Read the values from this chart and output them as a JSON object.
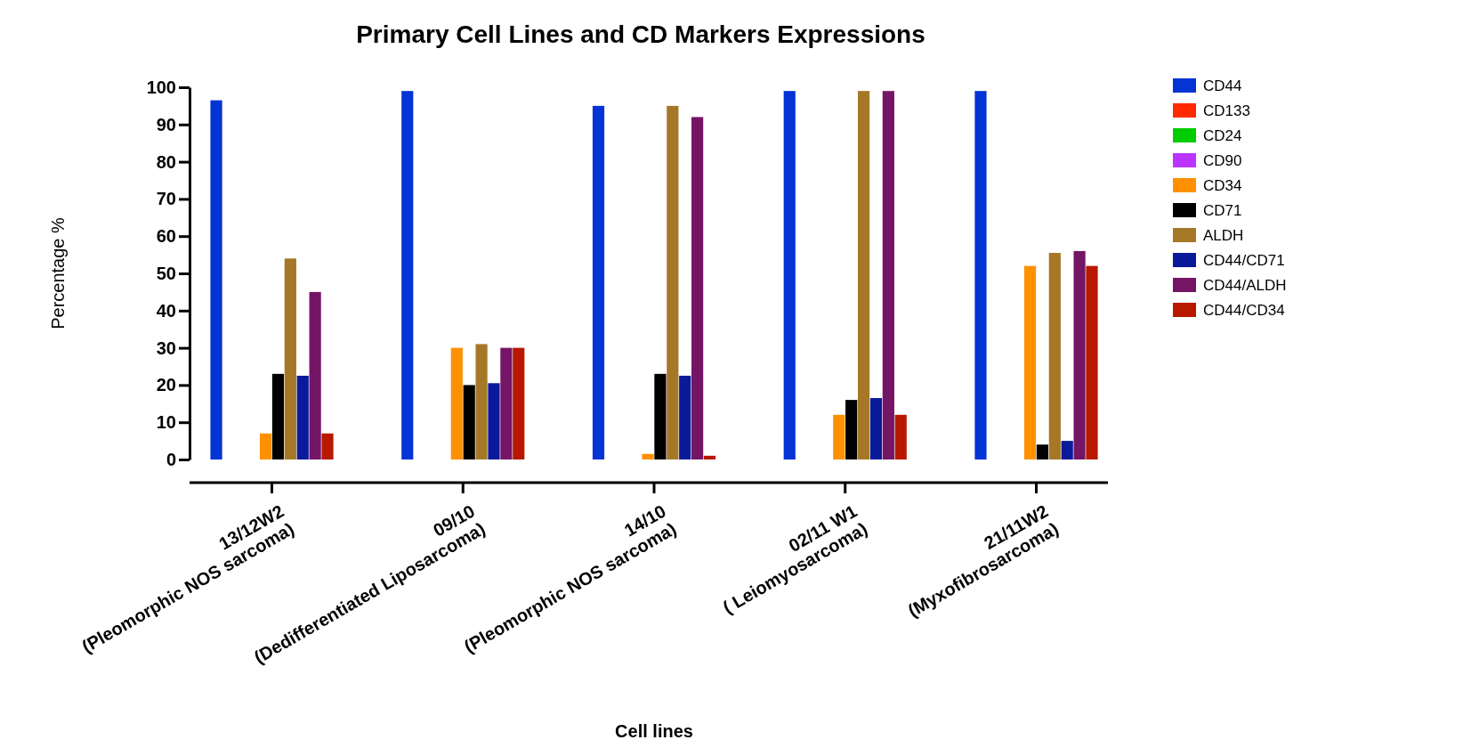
{
  "chart_data": {
    "type": "bar",
    "title": "Primary Cell Lines and CD Markers Expressions",
    "xlabel": "Cell lines",
    "ylabel": "Percentage %",
    "categories": [
      "13/12W2\n(Pleomorphic NOS sarcoma)",
      "09/10\n(Dedifferentiated Liposarcoma)",
      "14/10\n(Pleomorphic NOS sarcoma)",
      "02/11 W1\n( Leiomyosarcoma)",
      "21/11W2\n(Myxofibrosarcoma)"
    ],
    "series": [
      {
        "name": "CD44",
        "color": "#0433d6",
        "values": [
          96.5,
          99,
          95,
          99,
          99
        ]
      },
      {
        "name": "CD133",
        "color": "#ff2a00",
        "values": [
          0,
          0,
          0,
          0,
          0
        ]
      },
      {
        "name": "CD24",
        "color": "#00cc00",
        "values": [
          0,
          0,
          0,
          0,
          0
        ]
      },
      {
        "name": "CD90",
        "color": "#bb33ff",
        "values": [
          0,
          0,
          0,
          0,
          0
        ]
      },
      {
        "name": "CD34",
        "color": "#ff9000",
        "values": [
          7,
          30,
          1.5,
          12,
          52
        ]
      },
      {
        "name": "CD71",
        "color": "#000000",
        "values": [
          23,
          20,
          23,
          16,
          4
        ]
      },
      {
        "name": "ALDH",
        "color": "#a57828",
        "values": [
          54,
          31,
          95,
          99,
          55.5
        ]
      },
      {
        "name": "CD44/CD71",
        "color": "#0a1a9a",
        "values": [
          22.5,
          20.5,
          22.5,
          16.5,
          5
        ]
      },
      {
        "name": "CD44/ALDH",
        "color": "#751565",
        "values": [
          45,
          30,
          92,
          99,
          56
        ]
      },
      {
        "name": "CD44/CD34",
        "color": "#b81800",
        "values": [
          7,
          30,
          1,
          12,
          52
        ]
      }
    ],
    "ylim": [
      0,
      100
    ],
    "yticks": [
      0,
      10,
      20,
      30,
      40,
      50,
      60,
      70,
      80,
      90,
      100
    ],
    "legend": "right"
  }
}
